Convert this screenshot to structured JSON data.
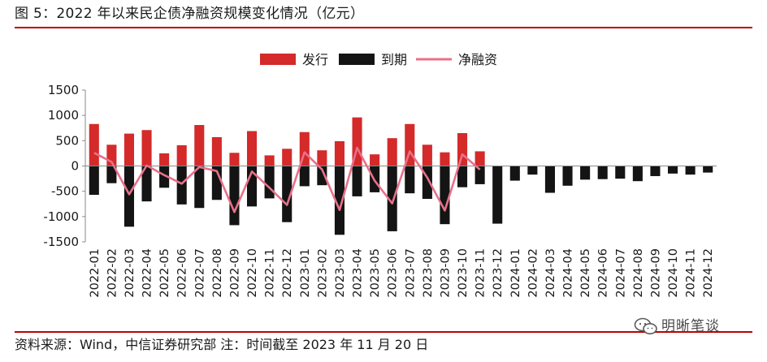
{
  "figure": {
    "title": "图 5：2022 年以来民企债净融资规模变化情况（亿元）",
    "source": "资料来源：Wind，中信证券研究部 注：时间截至 2023 年 11 月 20 日",
    "watermark": "明晰笔谈",
    "watermark_icon": "wechat-icon"
  },
  "colors": {
    "issuance": "#d42a2a",
    "maturity": "#141414",
    "net": "#e8708a",
    "rule": "#c00000"
  },
  "chart_data": {
    "type": "bar",
    "title": "",
    "xlabel": "",
    "ylabel": "",
    "ylim": [
      -1500,
      1500
    ],
    "yticks": [
      1500,
      1000,
      500,
      0,
      -500,
      -1000,
      -1500
    ],
    "legend_position": "top-center",
    "grid": false,
    "categories": [
      "2022-01",
      "2022-02",
      "2022-03",
      "2022-04",
      "2022-05",
      "2022-06",
      "2022-07",
      "2022-08",
      "2022-09",
      "2022-10",
      "2022-11",
      "2022-12",
      "2023-01",
      "2023-02",
      "2023-03",
      "2023-04",
      "2023-05",
      "2023-06",
      "2023-07",
      "2023-08",
      "2023-09",
      "2023-10",
      "2023-11",
      "2023-12",
      "2024-01",
      "2024-02",
      "2024-03",
      "2024-04",
      "2024-05",
      "2024-06",
      "2024-07",
      "2024-08",
      "2024-09",
      "2024-10",
      "2024-11",
      "2024-12"
    ],
    "series": [
      {
        "name": "发行",
        "type": "bar",
        "values": [
          830,
          420,
          640,
          710,
          250,
          410,
          810,
          570,
          260,
          690,
          210,
          340,
          670,
          310,
          490,
          960,
          230,
          550,
          830,
          420,
          270,
          650,
          290,
          null,
          null,
          null,
          null,
          null,
          null,
          null,
          null,
          null,
          null,
          null,
          null,
          null
        ]
      },
      {
        "name": "到期",
        "type": "bar",
        "values": [
          -570,
          -340,
          -1200,
          -700,
          -430,
          -760,
          -830,
          -670,
          -1170,
          -800,
          -640,
          -1110,
          -400,
          -380,
          -1360,
          -600,
          -520,
          -1290,
          -540,
          -650,
          -1150,
          -420,
          -360,
          -1140,
          -290,
          -170,
          -530,
          -390,
          -270,
          -260,
          -250,
          -300,
          -200,
          -150,
          -170,
          -130
        ]
      },
      {
        "name": "净融资",
        "type": "line",
        "values": [
          260,
          80,
          -560,
          10,
          -180,
          -350,
          -20,
          -100,
          -910,
          -110,
          -430,
          -770,
          270,
          -70,
          -870,
          360,
          -290,
          -740,
          290,
          -230,
          -880,
          230,
          -70,
          null,
          null,
          null,
          null,
          null,
          null,
          null,
          null,
          null,
          null,
          null,
          null,
          null
        ]
      }
    ]
  }
}
